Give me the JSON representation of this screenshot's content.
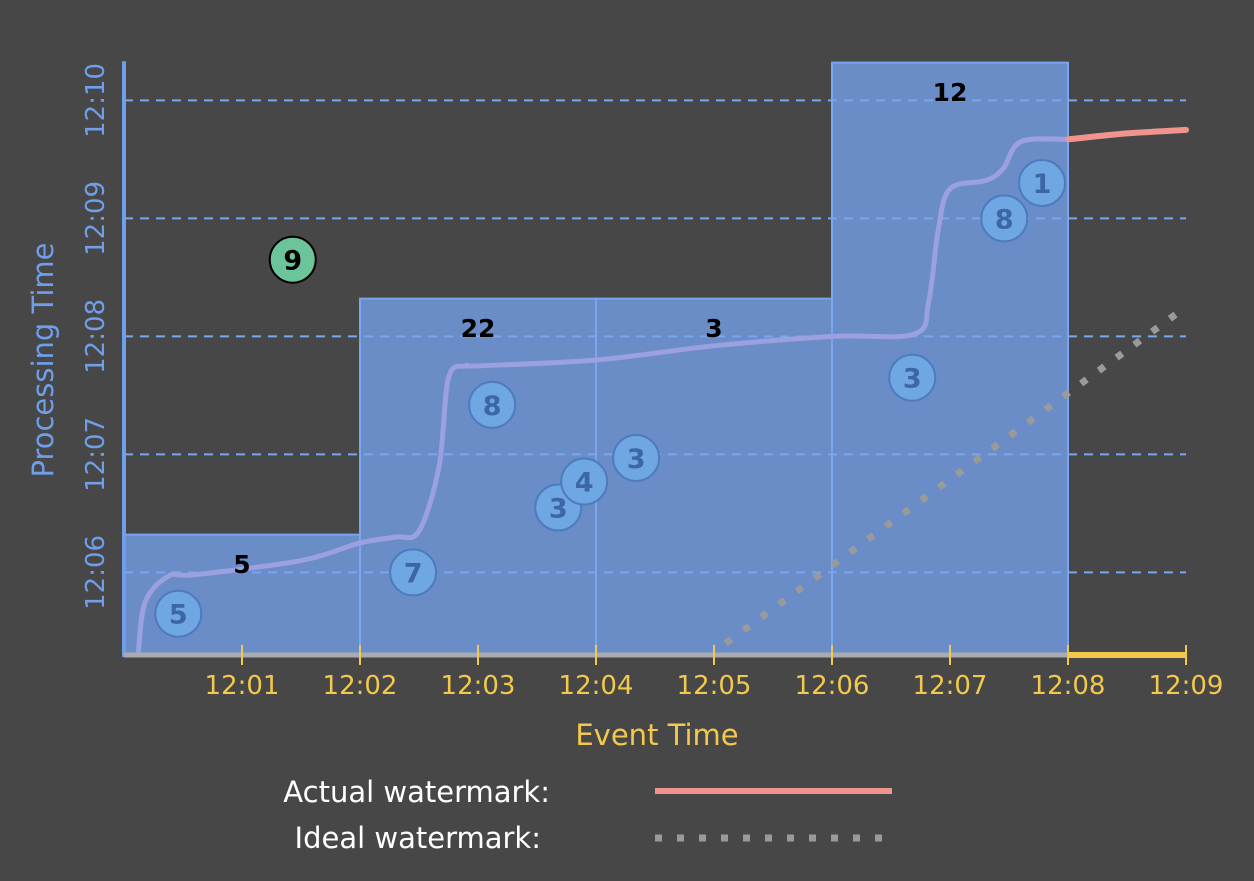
{
  "chart_data": {
    "type": "scatter",
    "xlabel": "Event Time",
    "ylabel": "Processing Time",
    "x_ticks": [
      "12:01",
      "12:02",
      "12:03",
      "12:04",
      "12:05",
      "12:06",
      "12:07",
      "12:08",
      "12:09"
    ],
    "y_ticks": [
      "12:06",
      "12:07",
      "12:08",
      "12:09",
      "12:10"
    ],
    "xlim": [
      0,
      9
    ],
    "ylim": [
      0,
      5.1
    ],
    "y_tick_values": [
      0.7,
      1.7,
      2.7,
      3.7,
      4.7
    ],
    "grid": "horizontal dashed",
    "windows": [
      {
        "x0": 0,
        "x1": 2,
        "top": 1.02,
        "sum": "5",
        "label_x": 1.0,
        "label_y": 0.77
      },
      {
        "x0": 2,
        "x1": 4,
        "top": 3.02,
        "sum": "22",
        "label_x": 3.0,
        "label_y": 2.77
      },
      {
        "x0": 4,
        "x1": 6,
        "top": 3.02,
        "sum": "3",
        "label_x": 5.0,
        "label_y": 2.77
      },
      {
        "x0": 6,
        "x1": 8,
        "top": 5.02,
        "sum": "12",
        "label_x": 7.0,
        "label_y": 4.77
      }
    ],
    "points": [
      {
        "x": 0.46,
        "y": 0.35,
        "value": "5",
        "status": "on-time"
      },
      {
        "x": 1.43,
        "y": 3.35,
        "value": "9",
        "status": "late"
      },
      {
        "x": 2.45,
        "y": 0.7,
        "value": "7",
        "status": "on-time"
      },
      {
        "x": 3.12,
        "y": 2.12,
        "value": "8",
        "status": "on-time"
      },
      {
        "x": 3.68,
        "y": 1.25,
        "value": "3",
        "status": "on-time"
      },
      {
        "x": 3.9,
        "y": 1.47,
        "value": "4",
        "status": "on-time"
      },
      {
        "x": 4.34,
        "y": 1.67,
        "value": "3",
        "status": "on-time"
      },
      {
        "x": 6.68,
        "y": 2.35,
        "value": "3",
        "status": "on-time"
      },
      {
        "x": 7.46,
        "y": 3.7,
        "value": "8",
        "status": "on-time"
      },
      {
        "x": 7.78,
        "y": 4.0,
        "value": "1",
        "status": "on-time"
      }
    ],
    "series": [
      {
        "name": "Actual watermark",
        "style": "solid",
        "color": "#f0948e",
        "points": [
          [
            0.12,
            0
          ],
          [
            0.18,
            0.45
          ],
          [
            0.38,
            0.67
          ],
          [
            0.6,
            0.68
          ],
          [
            1.5,
            0.8
          ],
          [
            2.0,
            0.95
          ],
          [
            2.3,
            1.0
          ],
          [
            2.5,
            1.05
          ],
          [
            2.67,
            1.6
          ],
          [
            2.75,
            2.35
          ],
          [
            2.9,
            2.45
          ],
          [
            3.0,
            2.45
          ],
          [
            4.0,
            2.5
          ],
          [
            5.0,
            2.62
          ],
          [
            6.0,
            2.7
          ],
          [
            6.7,
            2.72
          ],
          [
            6.82,
            3.0
          ],
          [
            6.9,
            3.6
          ],
          [
            7.0,
            3.95
          ],
          [
            7.3,
            4.02
          ],
          [
            7.45,
            4.12
          ],
          [
            7.6,
            4.35
          ],
          [
            8.0,
            4.37
          ],
          [
            8.5,
            4.42
          ],
          [
            9.0,
            4.45
          ]
        ]
      },
      {
        "name": "Ideal watermark",
        "style": "dotted",
        "color": "#9a9a9a",
        "points": [
          [
            5.1,
            0.1
          ],
          [
            9.0,
            2.95
          ]
        ]
      }
    ],
    "legend": {
      "actual_label": "Actual watermark:",
      "ideal_label": "Ideal watermark:",
      "placement": "bottom"
    },
    "colors": {
      "background": "#474747",
      "window_fill": "#6a8cc7",
      "window_border": "#7aa6ef",
      "grid": "#7aa6ef",
      "x_axis": "#f2c94c",
      "y_axis": "#6f9eea",
      "watermark_curve": "#9aa0e0",
      "dot_on_time_fill": "#6fa7e2",
      "dot_on_time_text": "#3d66a6",
      "dot_late_fill": "#6cc59a",
      "dot_late_text": "#000000",
      "actual_watermark": "#f0948e",
      "ideal_watermark": "#9a9a9a"
    }
  }
}
